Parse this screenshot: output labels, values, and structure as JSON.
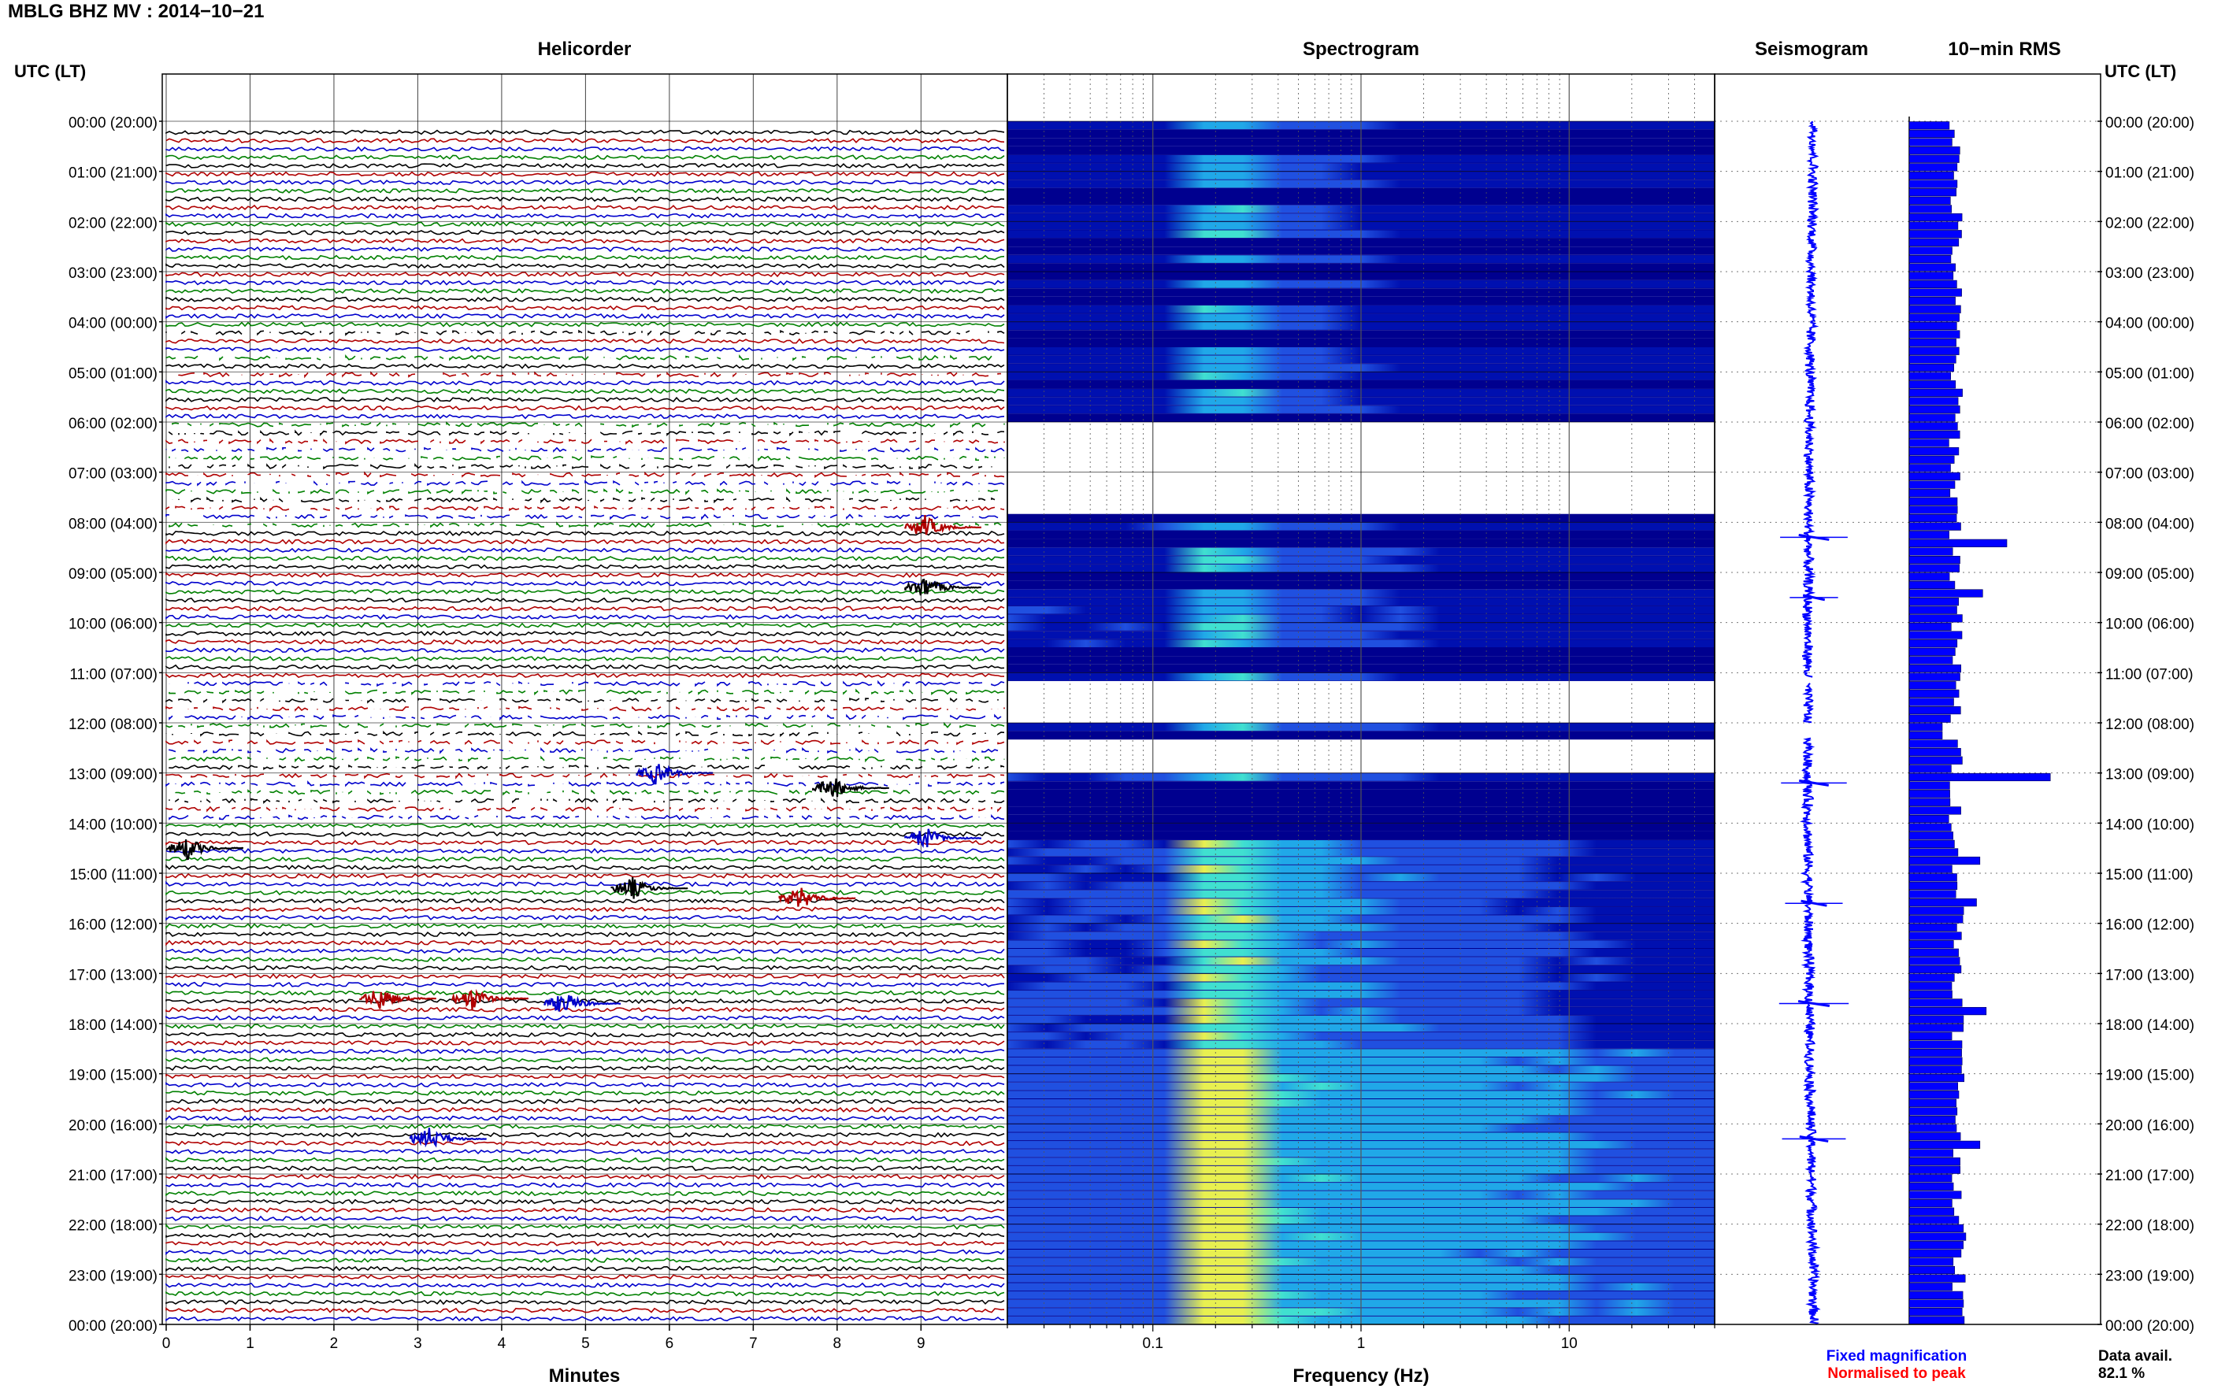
{
  "header": {
    "title": "MBLG BHZ MV : 2014−10−21",
    "utc_label_left": "UTC (LT)",
    "utc_label_right": "UTC (LT)"
  },
  "panels": {
    "helicorder_title": "Helicorder",
    "spectrogram_title": "Spectrogram",
    "seismogram_title": "Seismogram",
    "rms_title": "10−min RMS"
  },
  "time_labels": [
    "00:00 (20:00)",
    "01:00 (21:00)",
    "02:00 (22:00)",
    "03:00 (23:00)",
    "04:00 (00:00)",
    "05:00 (01:00)",
    "06:00 (02:00)",
    "07:00 (03:00)",
    "08:00 (04:00)",
    "09:00 (05:00)",
    "10:00 (06:00)",
    "11:00 (07:00)",
    "12:00 (08:00)",
    "13:00 (09:00)",
    "14:00 (10:00)",
    "15:00 (11:00)",
    "16:00 (12:00)",
    "17:00 (13:00)",
    "18:00 (14:00)",
    "19:00 (15:00)",
    "20:00 (16:00)",
    "21:00 (17:00)",
    "22:00 (18:00)",
    "23:00 (19:00)",
    "00:00 (20:00)"
  ],
  "footer": {
    "fixed_magnification": "Fixed magnification",
    "normalised_to_peak": "Normalised to peak",
    "data_avail_label": "Data avail.",
    "data_avail_value": "82.1 %"
  },
  "colors": {
    "trace_cycle": [
      "#000000",
      "#b00000",
      "#0000cc",
      "#008000"
    ],
    "seismogram": "#0000ff",
    "rms": "#0000ff",
    "fixed_magnification": "#0000ff",
    "normalised_to_peak": "#ff0000"
  },
  "chart_data": [
    {
      "type": "line",
      "name": "helicorder",
      "title": "Helicorder",
      "xlabel": "Minutes",
      "x_ticks": [
        0,
        1,
        2,
        3,
        4,
        5,
        6,
        7,
        8,
        9
      ],
      "xlim": [
        0,
        10
      ],
      "ylim_hours_utc": [
        0,
        24
      ],
      "traces_per_hour": 6,
      "notable_events": [
        {
          "utc_hour": 8.1,
          "minute": 9.0,
          "color": "red"
        },
        {
          "utc_hour": 9.3,
          "minute": 9.0,
          "color": "black"
        },
        {
          "utc_hour": 13.0,
          "minute": 5.8,
          "color": "blue"
        },
        {
          "utc_hour": 13.3,
          "minute": 7.9,
          "color": "black"
        },
        {
          "utc_hour": 14.3,
          "minute": 9.0,
          "color": "blue"
        },
        {
          "utc_hour": 14.5,
          "minute": 0.2,
          "color": "black"
        },
        {
          "utc_hour": 15.3,
          "minute": 5.5,
          "color": "black"
        },
        {
          "utc_hour": 15.5,
          "minute": 7.5,
          "color": "red"
        },
        {
          "utc_hour": 17.5,
          "minute": 2.5,
          "color": "red"
        },
        {
          "utc_hour": 17.5,
          "minute": 3.6,
          "color": "red"
        },
        {
          "utc_hour": 17.6,
          "minute": 4.7,
          "color": "blue"
        },
        {
          "utc_hour": 20.3,
          "minute": 3.1,
          "color": "blue"
        }
      ]
    },
    {
      "type": "heatmap",
      "name": "spectrogram",
      "title": "Spectrogram",
      "xlabel": "Frequency (Hz)",
      "x_scale": "log",
      "x_ticks": [
        0.1,
        1,
        10
      ],
      "xlim": [
        0.02,
        50
      ],
      "ylim_hours_utc": [
        0,
        24
      ],
      "energy_band_hz": [
        0.15,
        0.3
      ],
      "gap_hours_utc": [
        [
          6.0,
          7.8
        ],
        [
          11.1,
          12.0
        ],
        [
          12.3,
          12.9
        ]
      ]
    },
    {
      "type": "line",
      "name": "seismogram",
      "title": "Seismogram",
      "ylim_hours_utc": [
        0,
        24
      ],
      "spikes_utc_hours": [
        8.3,
        9.5,
        13.2,
        15.6,
        17.6,
        20.3
      ]
    },
    {
      "type": "bar",
      "name": "rms",
      "title": "10−min RMS",
      "ylim_hours_utc": [
        0,
        24
      ],
      "peaks_utc_hours": [
        8.3,
        9.4,
        13.0,
        14.6,
        15.5,
        17.6,
        20.3
      ]
    }
  ]
}
